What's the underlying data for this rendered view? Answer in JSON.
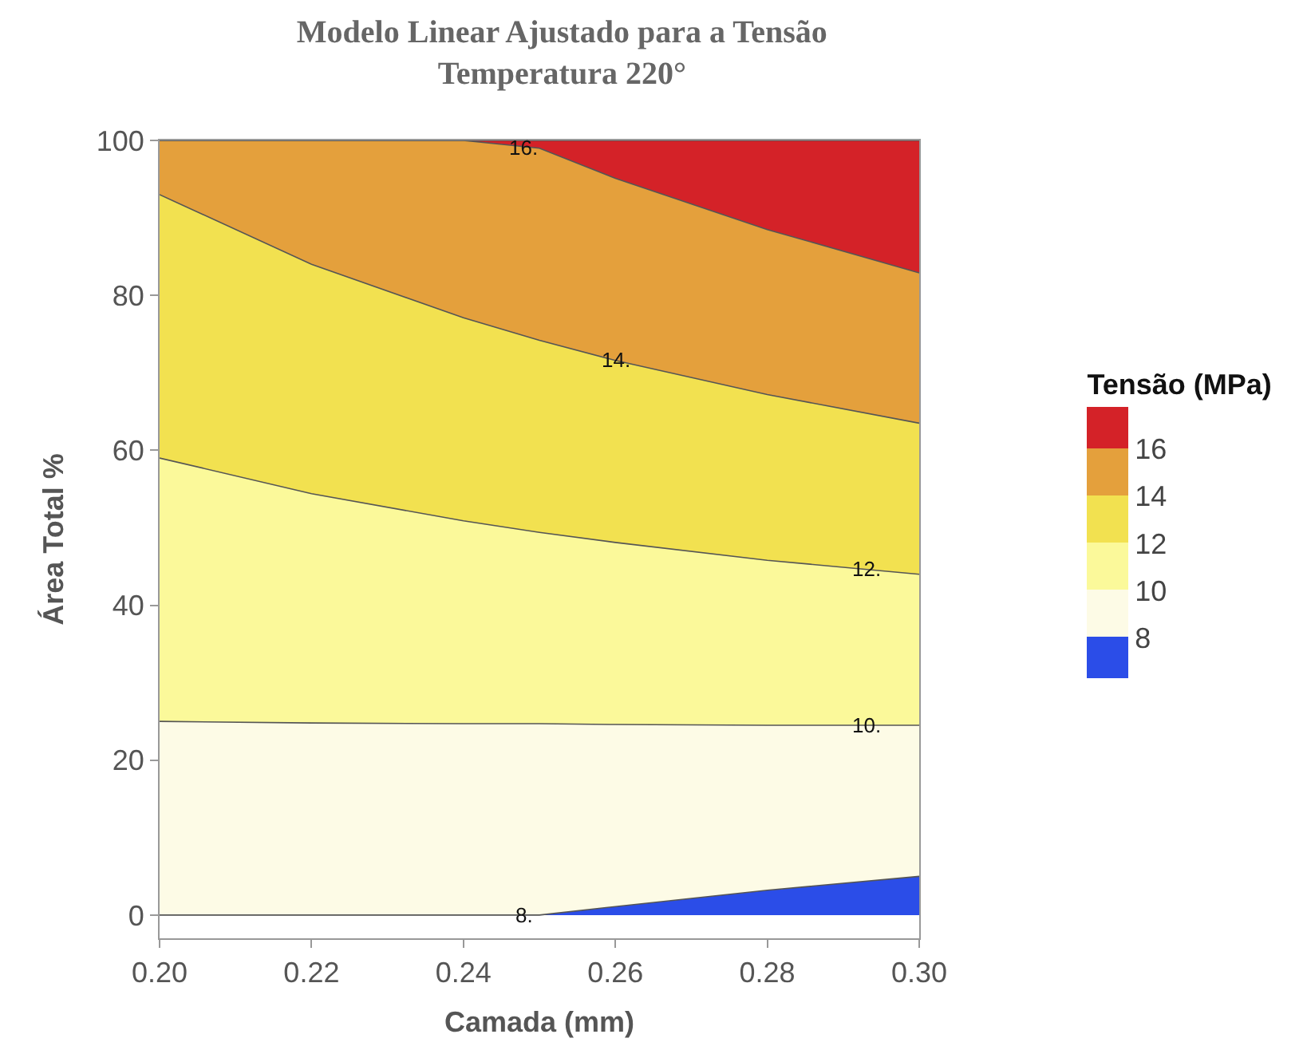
{
  "chart_data": {
    "type": "area",
    "stacked": true,
    "title": "Modelo Linear Ajustado para a Tensão",
    "subtitle": "Temperatura 220°",
    "xlabel": "Camada (mm)",
    "ylabel": "Área Total %",
    "clabel": "Tensão (MPa)",
    "x": [
      0.2,
      0.22,
      0.24,
      0.25,
      0.26,
      0.28,
      0.3
    ],
    "series": [
      {
        "color": "#2b4de8",
        "values": [
          0,
          0,
          0,
          0,
          1.1,
          3.2,
          5.0
        ]
      },
      {
        "color": "#fdfbe6",
        "values": [
          25.0,
          24.8,
          24.7,
          24.7,
          23.5,
          21.3,
          19.5
        ]
      },
      {
        "color": "#fbf99a",
        "values": [
          34.0,
          29.6,
          26.2,
          24.7,
          23.5,
          21.3,
          19.5
        ]
      },
      {
        "color": "#f2e150",
        "values": [
          34.0,
          29.6,
          26.2,
          24.8,
          23.5,
          21.4,
          19.5
        ]
      },
      {
        "color": "#e4a03c",
        "values": [
          7.0,
          16.0,
          22.9,
          24.8,
          23.5,
          21.3,
          19.4
        ]
      },
      {
        "color": "#d42228",
        "values": [
          0,
          0,
          0,
          1.0,
          4.9,
          11.5,
          17.1
        ]
      }
    ],
    "clim": [
      6.25,
      17.75
    ],
    "cticks": [
      8,
      10,
      12,
      14,
      16
    ],
    "xlim": [
      0.2,
      0.3
    ],
    "xticks": [
      "0.20",
      0.22,
      0.24,
      0.26,
      0.28,
      "0.30"
    ],
    "ylim": [
      -3,
      100
    ],
    "yticks": [
      0,
      20,
      40,
      60,
      80,
      100
    ],
    "annotations": [
      {
        "text": "16.",
        "x": 0.248,
        "y": 99
      },
      {
        "text": "14.",
        "x": 0.26,
        "y": 71.6
      },
      {
        "text": "12.",
        "x": 0.293,
        "y": 44.6
      },
      {
        "text": "10.",
        "x": 0.293,
        "y": 24.5
      },
      {
        "text": "8.",
        "x": 0.248,
        "y": 0
      }
    ]
  }
}
